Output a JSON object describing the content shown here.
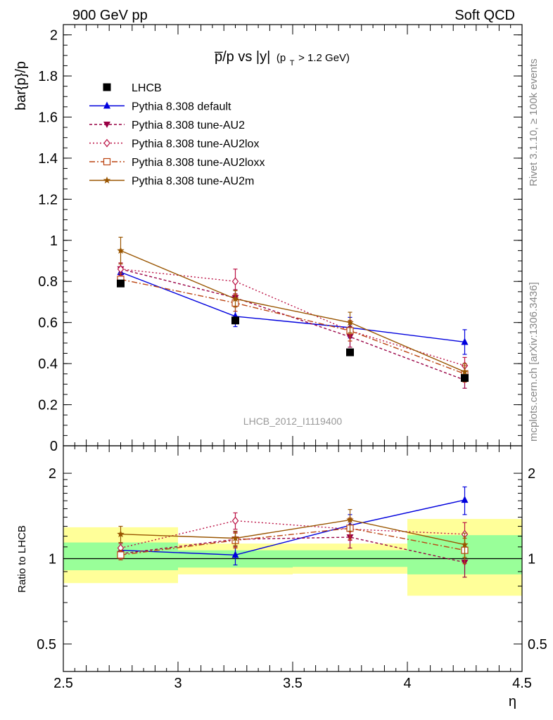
{
  "header": {
    "left": "900 GeV pp",
    "right": "Soft QCD"
  },
  "side_labels": {
    "rivet": "Rivet 3.1.10, ≥ 100k events",
    "mcplots": "mcplots.cern.ch [arXiv:1306.3436]"
  },
  "chart_data": [
    {
      "type": "line",
      "title_main": "p̅/p vs |y|",
      "title_sub": "(p",
      "title_sub_sub": "T",
      "title_sub_tail": " > 1.2 GeV)",
      "ylabel": "bar{p}/p",
      "xlabel": "",
      "watermark": "LHCB_2012_I1119400",
      "xlim": [
        2.5,
        4.5
      ],
      "ylim": [
        0,
        2.05
      ],
      "yticks": [
        0,
        0.2,
        0.4,
        0.6,
        0.8,
        1,
        1.2,
        1.4,
        1.6,
        1.8,
        2
      ],
      "ytick_labels": [
        "0",
        "0.2",
        "0.4",
        "0.6",
        "0.8",
        "1",
        "1.2",
        "1.4",
        "1.6",
        "1.8",
        "2"
      ],
      "legend_position": "top-left",
      "data_points": {
        "name": "LHCB",
        "color": "#000000",
        "x": [
          2.75,
          3.25,
          3.75,
          4.25
        ],
        "y": [
          0.79,
          0.61,
          0.455,
          0.33
        ]
      },
      "series": [
        {
          "name": "Pythia 8.308 default",
          "color": "#0000dd",
          "marker": "triangle-up",
          "dash": "",
          "x": [
            2.75,
            3.25,
            3.75,
            4.25
          ],
          "y": [
            0.845,
            0.63,
            0.575,
            0.505
          ],
          "err": [
            0.025,
            0.05,
            0.05,
            0.06
          ]
        },
        {
          "name": "Pythia 8.308 tune-AU2",
          "color": "#990044",
          "marker": "triangle-down",
          "dash": "4,3",
          "x": [
            2.75,
            3.25,
            3.75,
            4.25
          ],
          "y": [
            0.86,
            0.72,
            0.53,
            0.32
          ],
          "err": [
            0.03,
            0.04,
            0.05,
            0.04
          ]
        },
        {
          "name": "Pythia 8.308 tune-AU2lox",
          "color": "#bb1144",
          "marker": "diamond-open",
          "dash": "2,3",
          "x": [
            2.75,
            3.25,
            3.75,
            4.25
          ],
          "y": [
            0.86,
            0.8,
            0.56,
            0.39
          ],
          "err": [
            0.03,
            0.06,
            0.05,
            0.04
          ]
        },
        {
          "name": "Pythia 8.308 tune-AU2loxx",
          "color": "#bb4411",
          "marker": "square-open",
          "dash": "8,3,2,3",
          "x": [
            2.75,
            3.25,
            3.75,
            4.25
          ],
          "y": [
            0.81,
            0.695,
            0.56,
            0.35
          ],
          "err": [
            0.03,
            0.04,
            0.05,
            0.04
          ]
        },
        {
          "name": "Pythia 8.308 tune-AU2m",
          "color": "#995500",
          "marker": "star",
          "dash": "",
          "x": [
            2.75,
            3.25,
            3.75,
            4.25
          ],
          "y": [
            0.95,
            0.715,
            0.6,
            0.36
          ],
          "err": [
            0.065,
            0.04,
            0.05,
            0.04
          ]
        }
      ]
    },
    {
      "type": "line",
      "ylabel": "Ratio to LHCB",
      "xlabel": "η",
      "xlim": [
        2.5,
        4.5
      ],
      "ylim": [
        0.4,
        2.5
      ],
      "y_scale": "log",
      "yticks": [
        0.5,
        1,
        2
      ],
      "ytick_labels": [
        "0.5",
        "1",
        "2"
      ],
      "xticks": [
        2.5,
        3,
        3.5,
        4,
        4.5
      ],
      "xtick_labels": [
        "2.5",
        "3",
        "3.5",
        "4",
        "4.5"
      ],
      "uncertainty_bands": [
        {
          "x0": 2.5,
          "x1": 3.0,
          "inner": [
            0.91,
            1.14
          ],
          "outer": [
            0.82,
            1.29
          ]
        },
        {
          "x0": 3.0,
          "x1": 3.5,
          "inner": [
            0.93,
            1.07
          ],
          "outer": [
            0.88,
            1.13
          ]
        },
        {
          "x0": 3.5,
          "x1": 4.0,
          "inner": [
            0.935,
            1.07
          ],
          "outer": [
            0.885,
            1.13
          ]
        },
        {
          "x0": 4.0,
          "x1": 4.5,
          "inner": [
            0.88,
            1.21
          ],
          "outer": [
            0.74,
            1.38
          ]
        }
      ],
      "series": [
        {
          "name": "Pythia 8.308 default",
          "color": "#0000dd",
          "marker": "triangle-up",
          "dash": "",
          "x": [
            2.75,
            3.25,
            3.75,
            4.25
          ],
          "y": [
            1.07,
            1.03,
            1.31,
            1.61
          ],
          "err": [
            0.03,
            0.08,
            0.12,
            0.18
          ]
        },
        {
          "name": "Pythia 8.308 tune-AU2",
          "color": "#990044",
          "marker": "triangle-down",
          "dash": "4,3",
          "x": [
            2.75,
            3.25,
            3.75,
            4.25
          ],
          "y": [
            1.04,
            1.17,
            1.19,
            0.97
          ],
          "err": [
            0.04,
            0.07,
            0.1,
            0.11
          ]
        },
        {
          "name": "Pythia 8.308 tune-AU2lox",
          "color": "#bb1144",
          "marker": "diamond-open",
          "dash": "2,3",
          "x": [
            2.75,
            3.25,
            3.75,
            4.25
          ],
          "y": [
            1.09,
            1.36,
            1.27,
            1.22
          ],
          "err": [
            0.04,
            0.09,
            0.11,
            0.12
          ]
        },
        {
          "name": "Pythia 8.308 tune-AU2loxx",
          "color": "#bb4411",
          "marker": "square-open",
          "dash": "8,3,2,3",
          "x": [
            2.75,
            3.25,
            3.75,
            4.25
          ],
          "y": [
            1.03,
            1.16,
            1.28,
            1.07
          ],
          "err": [
            0.04,
            0.07,
            0.11,
            0.11
          ]
        },
        {
          "name": "Pythia 8.308 tune-AU2m",
          "color": "#995500",
          "marker": "star",
          "dash": "",
          "x": [
            2.75,
            3.25,
            3.75,
            4.25
          ],
          "y": [
            1.22,
            1.18,
            1.37,
            1.12
          ],
          "err": [
            0.08,
            0.07,
            0.12,
            0.11
          ]
        }
      ]
    }
  ]
}
